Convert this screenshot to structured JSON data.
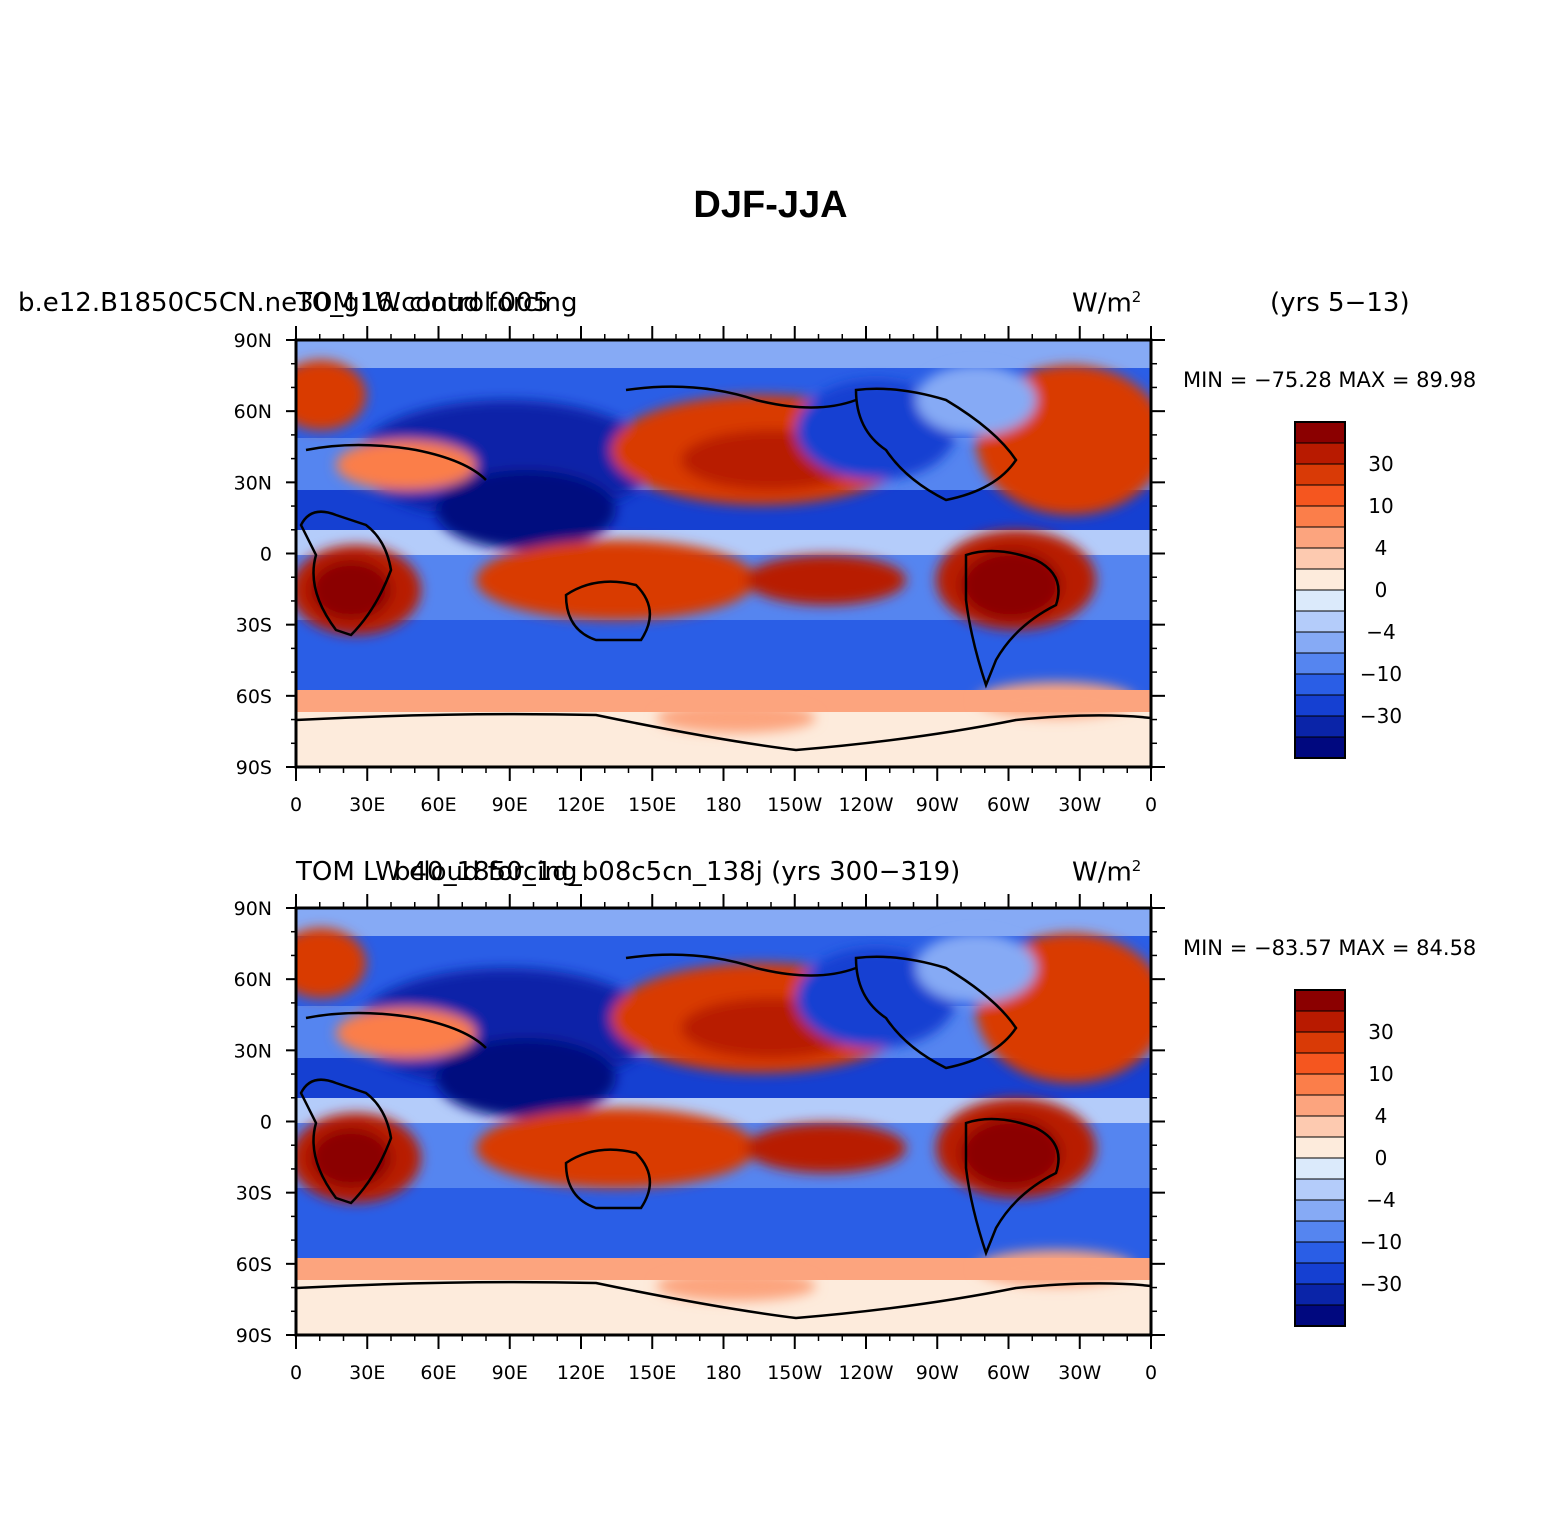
{
  "title": "DJF-JJA",
  "panels": [
    {
      "left_label": "b.e12.B1850C5CN.ne30_g16.control.005",
      "center_label": "TOM LW cloud forcing",
      "units_label": "W/m",
      "units_superscript": "2",
      "years_label": "(yrs 5−13)",
      "stats": "MIN = −75.28  MAX =   89.98"
    },
    {
      "left_label": "b40_1850_1d_b08c5cn_138j (yrs 300−319)",
      "center_label": "TOM LW cloud forcing",
      "units_label": "W/m",
      "units_superscript": "2",
      "years_label": "",
      "stats": "MIN = −83.57  MAX =   84.58"
    }
  ],
  "lat_ticks": [
    "90N",
    "60N",
    "30N",
    "0",
    "30S",
    "60S",
    "90S"
  ],
  "lon_ticks": [
    "0",
    "30E",
    "60E",
    "90E",
    "120E",
    "150E",
    "180",
    "150W",
    "120W",
    "90W",
    "60W",
    "30W",
    "0"
  ],
  "colorbar": {
    "labels": [
      "30",
      "10",
      "4",
      "0",
      "−4",
      "−10",
      "−30"
    ],
    "colors": [
      "#8b0000",
      "#b81a00",
      "#d93a06",
      "#f5561f",
      "#fb7e4a",
      "#fca47e",
      "#fdcab0",
      "#fdebdc",
      "#dbeafb",
      "#b4ccfa",
      "#86aaf5",
      "#5585f0",
      "#2a5ee6",
      "#1540d2",
      "#0a24a8",
      "#00087f"
    ]
  }
}
